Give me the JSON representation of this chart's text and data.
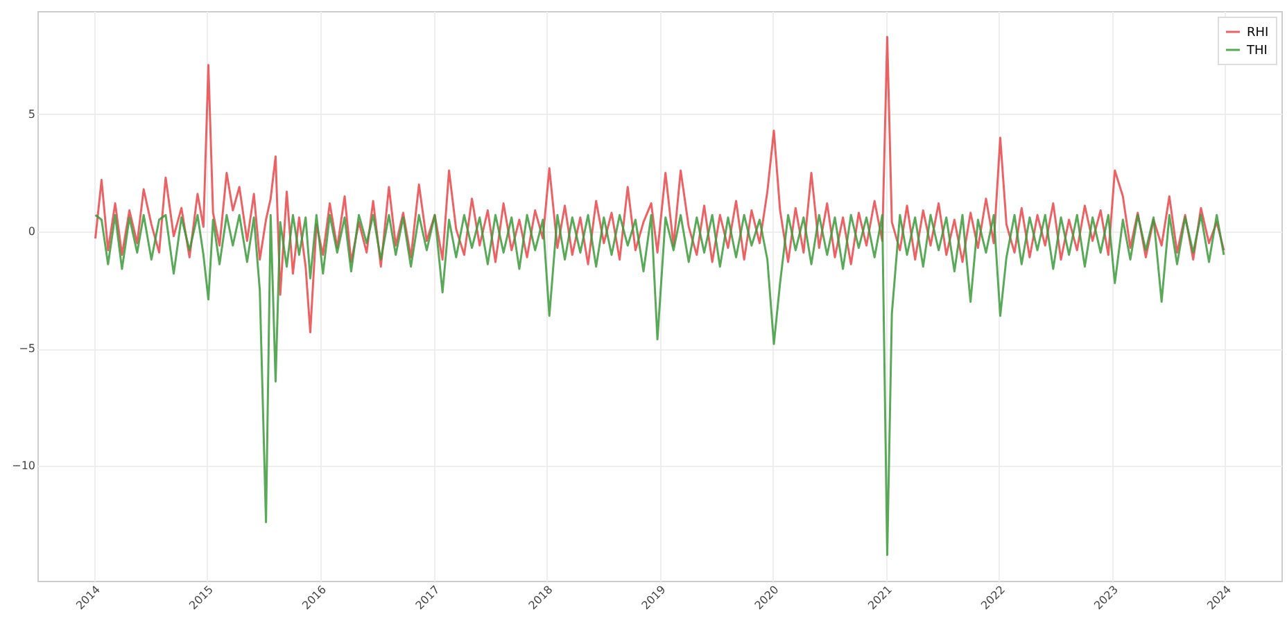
{
  "chart_data": {
    "type": "line",
    "x": [
      "2014-01-05",
      "2014-01-25",
      "2014-02-15",
      "2014-03-10",
      "2014-04-01",
      "2014-04-25",
      "2014-05-20",
      "2014-06-10",
      "2014-07-05",
      "2014-07-30",
      "2014-08-20",
      "2014-09-15",
      "2014-10-10",
      "2014-11-05",
      "2014-12-01",
      "2014-12-20",
      "2015-01-05",
      "2015-01-20",
      "2015-02-10",
      "2015-03-05",
      "2015-03-25",
      "2015-04-15",
      "2015-05-10",
      "2015-06-01",
      "2015-06-20",
      "2015-07-10",
      "2015-07-25",
      "2015-08-10",
      "2015-08-25",
      "2015-09-15",
      "2015-10-05",
      "2015-10-25",
      "2015-11-15",
      "2015-11-30",
      "2015-12-20",
      "2016-01-10",
      "2016-02-01",
      "2016-02-25",
      "2016-03-20",
      "2016-04-10",
      "2016-05-05",
      "2016-05-30",
      "2016-06-20",
      "2016-07-15",
      "2016-08-10",
      "2016-09-01",
      "2016-09-25",
      "2016-10-20",
      "2016-11-15",
      "2016-12-10",
      "2017-01-05",
      "2017-01-30",
      "2017-02-20",
      "2017-03-15",
      "2017-04-10",
      "2017-05-05",
      "2017-05-30",
      "2017-06-25",
      "2017-07-20",
      "2017-08-15",
      "2017-09-10",
      "2017-10-05",
      "2017-10-30",
      "2017-11-25",
      "2017-12-20",
      "2018-01-10",
      "2018-02-05",
      "2018-03-01",
      "2018-03-25",
      "2018-04-20",
      "2018-05-15",
      "2018-06-10",
      "2018-07-05",
      "2018-07-30",
      "2018-08-25",
      "2018-09-20",
      "2018-10-15",
      "2018-11-10",
      "2018-12-05",
      "2018-12-25",
      "2019-01-20",
      "2019-02-15",
      "2019-03-10",
      "2019-04-05",
      "2019-05-01",
      "2019-05-25",
      "2019-06-20",
      "2019-07-15",
      "2019-08-10",
      "2019-09-05",
      "2019-10-01",
      "2019-10-25",
      "2019-11-20",
      "2019-12-15",
      "2020-01-05",
      "2020-01-25",
      "2020-02-20",
      "2020-03-15",
      "2020-04-10",
      "2020-05-05",
      "2020-05-30",
      "2020-06-25",
      "2020-07-20",
      "2020-08-15",
      "2020-09-10",
      "2020-10-05",
      "2020-10-30",
      "2020-11-25",
      "2020-12-20",
      "2021-01-05",
      "2021-01-20",
      "2021-02-15",
      "2021-03-10",
      "2021-04-05",
      "2021-05-01",
      "2021-05-25",
      "2021-06-20",
      "2021-07-15",
      "2021-08-10",
      "2021-09-05",
      "2021-10-01",
      "2021-10-25",
      "2021-11-20",
      "2021-12-15",
      "2022-01-05",
      "2022-01-25",
      "2022-02-20",
      "2022-03-15",
      "2022-04-10",
      "2022-05-05",
      "2022-05-30",
      "2022-06-25",
      "2022-07-20",
      "2022-08-15",
      "2022-09-10",
      "2022-10-05",
      "2022-10-30",
      "2022-11-25",
      "2022-12-20",
      "2023-01-10",
      "2023-02-05",
      "2023-03-01",
      "2023-03-25",
      "2023-04-20",
      "2023-05-15",
      "2023-06-10",
      "2023-07-05",
      "2023-07-30",
      "2023-08-25",
      "2023-09-20",
      "2023-10-15",
      "2023-11-10",
      "2023-12-05",
      "2023-12-28"
    ],
    "series": [
      {
        "name": "RHI",
        "color": "#e8474a",
        "values": [
          -0.3,
          2.2,
          -0.8,
          1.2,
          -1.0,
          0.9,
          -0.5,
          1.8,
          0.3,
          -0.9,
          2.3,
          -0.2,
          1.0,
          -1.1,
          1.6,
          0.2,
          7.1,
          0.8,
          -0.6,
          2.5,
          0.9,
          1.9,
          -0.4,
          1.6,
          -1.2,
          0.5,
          1.4,
          3.2,
          -2.7,
          1.7,
          -1.8,
          0.6,
          -1.5,
          -4.3,
          0.3,
          -1.0,
          1.2,
          -0.7,
          1.5,
          -1.3,
          0.4,
          -0.9,
          1.3,
          -1.5,
          1.9,
          -0.6,
          0.8,
          -1.1,
          2.0,
          -0.4,
          0.7,
          -1.2,
          2.6,
          0.1,
          -1.0,
          1.4,
          -0.6,
          0.9,
          -1.3,
          1.2,
          -0.8,
          0.5,
          -1.1,
          0.9,
          -0.3,
          2.7,
          -0.7,
          1.1,
          -1.0,
          0.6,
          -1.4,
          1.3,
          -0.5,
          0.8,
          -1.2,
          1.9,
          -0.8,
          0.4,
          1.2,
          -0.9,
          2.5,
          -0.6,
          2.6,
          0.2,
          -1.0,
          1.1,
          -1.3,
          0.7,
          -0.7,
          1.3,
          -1.2,
          0.9,
          -0.5,
          1.7,
          4.3,
          0.9,
          -1.3,
          1.0,
          -0.9,
          2.5,
          -0.7,
          1.2,
          -1.1,
          0.6,
          -1.4,
          0.8,
          -0.6,
          1.3,
          -0.4,
          8.3,
          0.4,
          -0.8,
          1.1,
          -1.2,
          0.9,
          -0.6,
          1.2,
          -1.0,
          0.5,
          -1.3,
          0.8,
          -0.7,
          1.4,
          -0.5,
          4.0,
          0.3,
          -0.9,
          1.0,
          -1.1,
          0.7,
          -0.6,
          1.2,
          -1.2,
          0.5,
          -0.8,
          1.1,
          -0.4,
          0.9,
          -1.0,
          2.6,
          1.5,
          -0.7,
          0.8,
          -1.1,
          0.5,
          -0.6,
          1.5,
          -0.9,
          0.7,
          -1.2,
          1.0,
          -0.5,
          0.4,
          -0.8
        ]
      },
      {
        "name": "THI",
        "color": "#3c9a3c",
        "values": [
          0.7,
          0.5,
          -1.4,
          0.7,
          -1.6,
          0.6,
          -0.9,
          0.7,
          -1.2,
          0.5,
          0.7,
          -1.8,
          0.6,
          -0.8,
          0.7,
          -1.0,
          -2.9,
          0.5,
          -1.4,
          0.7,
          -0.6,
          0.7,
          -1.3,
          0.6,
          -2.5,
          -12.4,
          0.7,
          -6.4,
          0.4,
          -1.5,
          0.7,
          -1.0,
          0.6,
          -2.0,
          0.7,
          -1.8,
          0.7,
          -0.9,
          0.6,
          -1.7,
          0.7,
          -0.5,
          0.7,
          -1.2,
          0.7,
          -1.0,
          0.6,
          -1.5,
          0.7,
          -0.8,
          0.7,
          -2.6,
          0.5,
          -1.1,
          0.7,
          -0.7,
          0.6,
          -1.4,
          0.7,
          -0.9,
          0.6,
          -1.6,
          0.7,
          -0.8,
          0.5,
          -3.6,
          0.7,
          -1.2,
          0.6,
          -0.9,
          0.7,
          -1.5,
          0.6,
          -1.0,
          0.7,
          -0.6,
          0.5,
          -1.7,
          0.7,
          -4.6,
          0.6,
          -0.8,
          0.7,
          -1.3,
          0.6,
          -0.9,
          0.7,
          -1.5,
          0.6,
          -1.1,
          0.7,
          -0.6,
          0.5,
          -1.2,
          -4.8,
          -2.2,
          0.7,
          -0.8,
          0.6,
          -1.4,
          0.7,
          -1.0,
          0.6,
          -1.6,
          0.7,
          -0.7,
          0.6,
          -1.1,
          0.7,
          -13.8,
          -3.5,
          0.7,
          -1.0,
          0.6,
          -1.5,
          0.7,
          -0.8,
          0.6,
          -1.7,
          0.7,
          -3.0,
          0.5,
          -0.9,
          0.7,
          -3.6,
          -1.1,
          0.7,
          -1.4,
          0.6,
          -0.8,
          0.7,
          -1.6,
          0.6,
          -1.0,
          0.7,
          -1.5,
          0.6,
          -0.9,
          0.7,
          -2.2,
          0.5,
          -1.2,
          0.7,
          -0.8,
          0.6,
          -3.0,
          0.7,
          -1.4,
          0.6,
          -0.9,
          0.7,
          -1.3,
          0.7,
          -1.0
        ]
      }
    ],
    "xlim": [
      "2013-07-02",
      "2024-07-01"
    ],
    "xticks": [
      "2014",
      "2015",
      "2016",
      "2017",
      "2018",
      "2019",
      "2020",
      "2021",
      "2022",
      "2023",
      "2024"
    ],
    "ylim": [
      -14.9,
      9.4
    ],
    "yticks": [
      -10,
      -5,
      0,
      5
    ],
    "grid": true,
    "legend": "top right",
    "line_style": "solid",
    "marker": "none"
  }
}
